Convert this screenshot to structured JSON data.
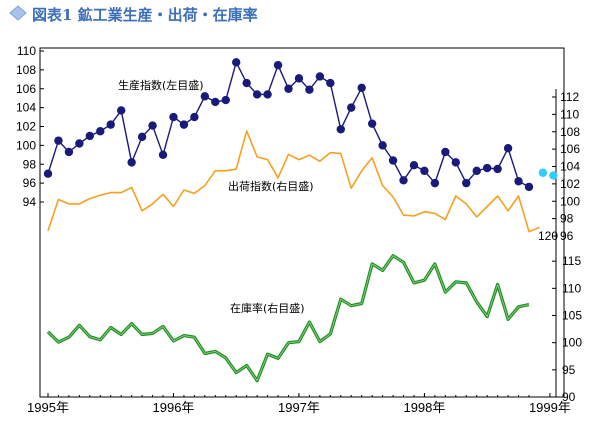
{
  "title": "図表1 鉱工業生産・出荷・在庫率",
  "colors": {
    "title": "#3d6fb8",
    "production": "#1a1a7a",
    "shipments": "#f5a020",
    "inventory": "#1e8a1e",
    "forecast": "#33ccff",
    "diamond": "#a9c3e8"
  },
  "chart_data": {
    "type": "line",
    "x_labels": [
      "1995年",
      "1996年",
      "1997年",
      "1998年",
      "1999年"
    ],
    "x_label_months": [
      0,
      12,
      24,
      36,
      48
    ],
    "n_months": 51,
    "left_axis": {
      "ticks": [
        94,
        96,
        98,
        100,
        102,
        104,
        106,
        108,
        110
      ],
      "range": [
        94,
        110
      ]
    },
    "right_upper_axis": {
      "ticks": [
        96,
        98,
        100,
        102,
        104,
        106,
        108,
        110,
        112
      ],
      "tick_text": [
        "96",
        "98",
        "100",
        "102",
        "104",
        "106",
        "108",
        "110",
        "112"
      ],
      "top_label": "120",
      "range": [
        96,
        112
      ]
    },
    "right_lower_axis": {
      "ticks": [
        90,
        95,
        100,
        105,
        110,
        115
      ],
      "range": [
        90,
        120
      ]
    },
    "series": [
      {
        "name": "生産指数(左目盛)",
        "key": "production",
        "axis": "left",
        "values": [
          97.0,
          100.5,
          99.3,
          100.2,
          101.0,
          101.5,
          102.2,
          103.7,
          98.2,
          100.9,
          102.1,
          99.0,
          103.0,
          102.2,
          103.0,
          105.2,
          104.6,
          104.8,
          108.8,
          106.6,
          105.4,
          105.4,
          108.5,
          106.0,
          107.1,
          105.9,
          107.3,
          106.6,
          101.7,
          104.0,
          106.1,
          102.3,
          100.0,
          98.4,
          96.3,
          97.9,
          97.3,
          96.0,
          99.3,
          98.2,
          96.0,
          97.3,
          97.6,
          97.5,
          99.7,
          96.2,
          95.6
        ]
      },
      {
        "name": "出荷指数(右目盛)",
        "key": "shipments",
        "axis": "right_upper",
        "values": [
          96.6,
          100.2,
          99.7,
          99.7,
          100.3,
          100.7,
          101.0,
          101.0,
          101.6,
          98.9,
          99.7,
          100.8,
          99.4,
          101.3,
          100.9,
          101.8,
          103.5,
          103.5,
          103.7,
          108.1,
          105.1,
          104.8,
          102.7,
          105.4,
          104.8,
          105.3,
          104.6,
          105.6,
          105.5,
          101.5,
          103.5,
          105.0,
          101.8,
          100.5,
          98.4,
          98.3,
          98.8,
          98.6,
          97.9,
          100.6,
          99.7,
          98.2,
          99.4,
          100.6,
          98.9,
          100.6,
          96.5,
          97.0
        ]
      },
      {
        "name": "在庫率(右目盛)",
        "key": "inventory",
        "axis": "right_lower",
        "values": [
          102.0,
          100.1,
          101.0,
          103.2,
          101.1,
          100.5,
          102.8,
          101.5,
          103.5,
          101.5,
          101.7,
          103.0,
          100.3,
          101.3,
          101.0,
          98.0,
          98.4,
          97.2,
          94.5,
          95.8,
          93.0,
          97.9,
          97.1,
          100.0,
          100.2,
          103.8,
          100.2,
          101.6,
          108.0,
          106.8,
          107.2,
          114.5,
          113.3,
          116.0,
          114.8,
          111.0,
          111.5,
          114.5,
          109.3,
          111.2,
          111.0,
          107.5,
          104.8,
          110.7,
          104.3,
          106.6,
          107.0
        ]
      }
    ],
    "forecast": {
      "series": "production",
      "months": [
        48,
        49
      ],
      "values": [
        97.1,
        96.8
      ]
    },
    "labels": {
      "production": "生産指数(左目盛)",
      "shipments": "出荷指数(右目盛)",
      "inventory": "在庫率(右目盛)"
    }
  }
}
